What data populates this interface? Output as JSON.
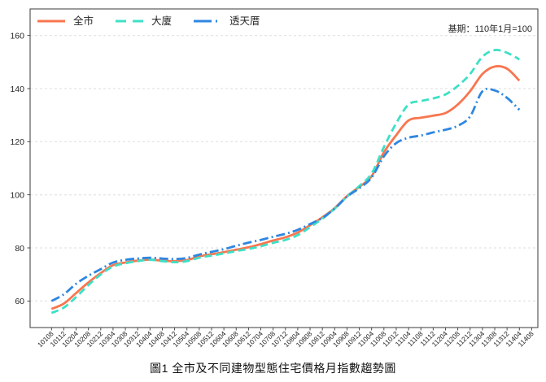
{
  "caption_prefix": "圖1",
  "chart_data": {
    "type": "line",
    "title": "圖1 全市及不同建物型態住宅價格月指數趨勢圖",
    "annotation": "基期：110年1月=100",
    "xlabel": "",
    "ylabel": "",
    "grid": "horizontal-dashed",
    "legend_position": "top-left-inside",
    "ylim": [
      50,
      170
    ],
    "yticks": [
      60,
      80,
      100,
      120,
      140,
      160
    ],
    "x_labels": [
      "10108",
      "10112",
      "10204",
      "10208",
      "10212",
      "10304",
      "10308",
      "10312",
      "10404",
      "10408",
      "10412",
      "10504",
      "10508",
      "10512",
      "10604",
      "10608",
      "10612",
      "10704",
      "10708",
      "10712",
      "10804",
      "10808",
      "10812",
      "10904",
      "10908",
      "10912",
      "11004",
      "11008",
      "11012",
      "11104",
      "11108",
      "11112",
      "11204",
      "11208",
      "11212",
      "11304",
      "11308",
      "11312",
      "11404",
      "11408"
    ],
    "series": [
      {
        "name": "全市",
        "color": "#F8764F",
        "style": "solid",
        "values": [
          57,
          59,
          63,
          67,
          70.5,
          73.5,
          74.5,
          75.2,
          75.6,
          75.2,
          75,
          75.4,
          76.8,
          77.6,
          78.4,
          79.3,
          80.2,
          81.4,
          82.8,
          84,
          85.8,
          88.5,
          91.5,
          95,
          99.5,
          103,
          107,
          116,
          122.5,
          128,
          129,
          129.8,
          130.8,
          134,
          139,
          145.5,
          148.3,
          147.5,
          143,
          null
        ]
      },
      {
        "name": "大廈",
        "color": "#3DE0C6",
        "style": "dashed",
        "values": [
          55.5,
          57.5,
          61.5,
          66,
          70,
          73,
          74.2,
          75,
          75.5,
          75,
          74.6,
          75,
          76.3,
          77.1,
          77.9,
          78.8,
          79.6,
          80.6,
          81.9,
          83,
          84.8,
          87.8,
          91,
          94.8,
          99.3,
          103.3,
          108,
          118,
          127,
          134,
          135.3,
          136.3,
          137.8,
          141,
          145.5,
          152,
          154.5,
          153.5,
          151,
          null
        ]
      },
      {
        "name": "透天厝",
        "color": "#2E86E1",
        "style": "dashdot",
        "values": [
          60,
          62.5,
          66.5,
          69.5,
          72,
          74.5,
          75.5,
          76,
          76.3,
          76,
          75.8,
          76.2,
          77.5,
          78.5,
          79.5,
          80.8,
          82,
          83,
          84.2,
          85.3,
          86.8,
          89,
          91.3,
          94.8,
          99.3,
          102.5,
          106.5,
          114.5,
          119.5,
          121.5,
          122.3,
          123.5,
          124.5,
          126,
          129.5,
          139,
          139.3,
          136.5,
          132,
          null
        ]
      }
    ]
  }
}
